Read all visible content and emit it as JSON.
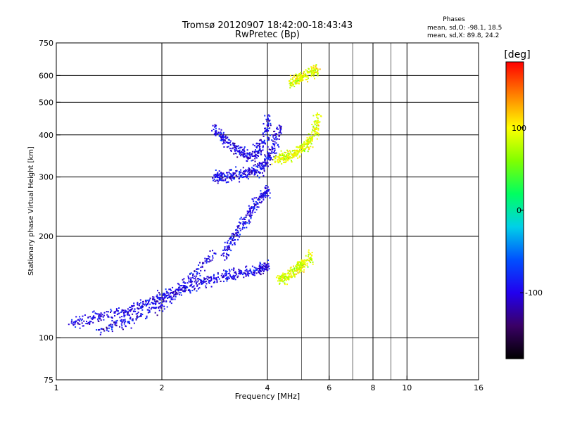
{
  "chart_data": {
    "type": "scatter",
    "title": "Tromsø 20120907 18:42:00-18:43:43",
    "subtitle": "RwPretec (Bp)",
    "xlabel": "Frequency [MHz]",
    "ylabel": "Stationary phase Virtual Height [km]",
    "x_scale": "log2",
    "y_scale": "log",
    "xlim": [
      1,
      16
    ],
    "ylim": [
      75,
      750
    ],
    "x_ticks": [
      1,
      2,
      4,
      6,
      8,
      10,
      16
    ],
    "x_tick_labels": [
      "1",
      "2",
      "4",
      "6",
      "8",
      "10",
      "16"
    ],
    "x_grid": [
      2,
      4,
      6,
      8,
      10
    ],
    "x_minor_grid": [
      5,
      7,
      9
    ],
    "y_ticks": [
      75,
      100,
      200,
      300,
      400,
      500,
      600,
      750
    ],
    "y_tick_labels": [
      "75",
      "100",
      "200",
      "300",
      "400",
      "500",
      "600",
      "750"
    ],
    "grid": true,
    "phases": {
      "title": "Phases",
      "line_o": "mean, sd,O: -98.1, 18.5",
      "line_x": "mean, sd,X:  89.8, 24.2"
    },
    "colorbar": {
      "label": "[deg]",
      "range": [
        -180,
        180
      ],
      "ticks": [
        -100,
        0,
        100
      ],
      "tick_labels": [
        "-100",
        "0",
        "100"
      ],
      "colors": [
        "#000000",
        "#3a0066",
        "#2200ee",
        "#0050ff",
        "#00d0e8",
        "#00ff60",
        "#80ff00",
        "#ffff00",
        "#ff8000",
        "#ff0000"
      ]
    },
    "series": [
      {
        "name": "O",
        "mean_phase": -98.1,
        "traces": [
          {
            "x": [
              1.1,
              1.3,
              1.55,
              1.8,
              2.0,
              2.3,
              2.6,
              3.0,
              3.4,
              3.8,
              4.0
            ],
            "y": [
              110,
              116,
              120,
              127,
              133,
              140,
              147,
              152,
              156,
              160,
              165
            ]
          },
          {
            "x": [
              1.3,
              1.6,
              2.0,
              2.4,
              2.8
            ],
            "y": [
              105,
              112,
              125,
              150,
              180
            ]
          },
          {
            "x": [
              3.0,
              3.2,
              3.5,
              3.8,
              4.0
            ],
            "y": [
              175,
              200,
              230,
              260,
              280
            ]
          },
          {
            "x": [
              2.8,
              3.0,
              3.3,
              3.6,
              3.9,
              4.1,
              4.3
            ],
            "y": [
              300,
              302,
              306,
              312,
              325,
              355,
              420
            ]
          },
          {
            "x": [
              2.8,
              3.0,
              3.3,
              3.6,
              3.9,
              4.0
            ],
            "y": [
              420,
              390,
              360,
              345,
              380,
              450
            ]
          }
        ]
      },
      {
        "name": "X",
        "mean_phase": 89.8,
        "traces": [
          {
            "x": [
              4.3,
              4.5,
              4.8,
              5.0,
              5.3
            ],
            "y": [
              150,
              152,
              158,
              165,
              175
            ]
          },
          {
            "x": [
              4.2,
              4.5,
              4.8,
              5.1,
              5.4,
              5.6
            ],
            "y": [
              340,
              345,
              355,
              370,
              400,
              460
            ]
          },
          {
            "x": [
              4.6,
              4.9,
              5.2,
              5.5
            ],
            "y": [
              570,
              590,
              610,
              630
            ]
          }
        ]
      }
    ]
  }
}
